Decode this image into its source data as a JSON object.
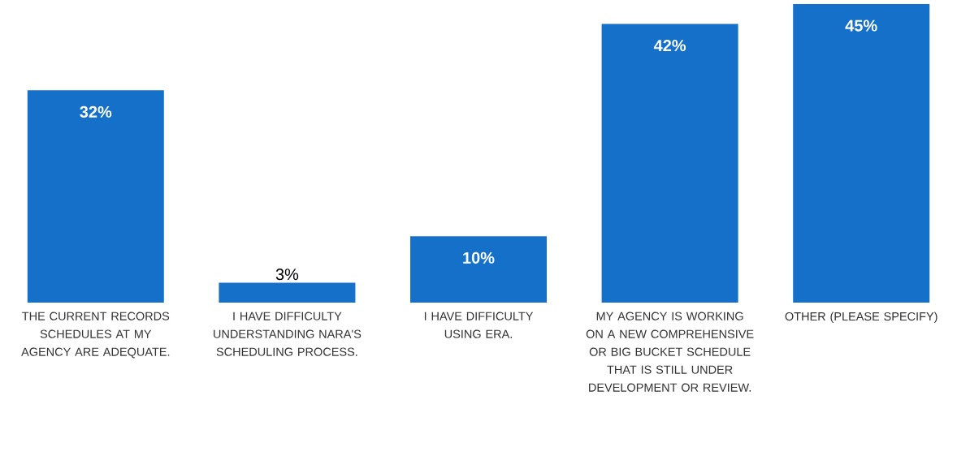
{
  "chart_data": {
    "type": "bar",
    "categories": [
      "THE CURRENT RECORDS SCHEDULES AT MY AGENCY ARE ADEQUATE.",
      "I HAVE DIFFICULTY UNDERSTANDING NARA'S SCHEDULING PROCESS.",
      "I HAVE DIFFICULTY USING ERA.",
      "MY AGENCY IS WORKING ON A NEW COMPREHENSIVE OR BIG BUCKET SCHEDULE THAT IS STILL UNDER DEVELOPMENT OR REVIEW.",
      "OTHER (PLEASE SPECIFY)"
    ],
    "values": [
      32,
      3,
      10,
      42,
      45
    ],
    "value_labels": [
      "32%",
      "3%",
      "10%",
      "42%",
      "45%"
    ],
    "color": "#1470c8"
  }
}
